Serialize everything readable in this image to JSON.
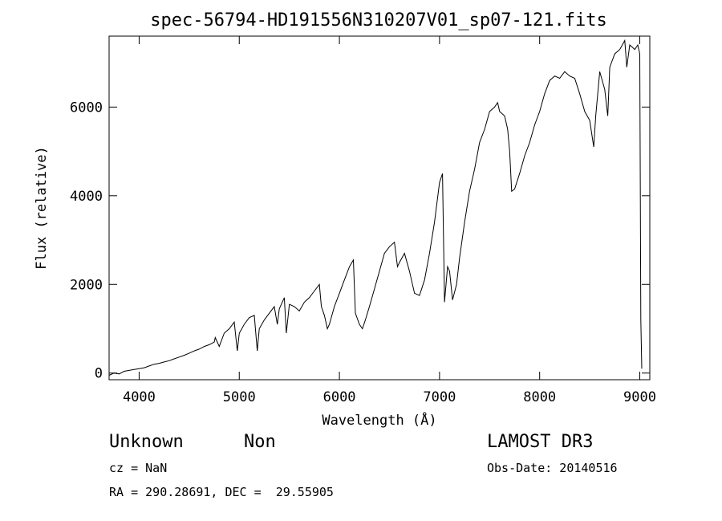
{
  "chart_data": {
    "type": "line",
    "title": "spec-56794-HD191556N310207V01_sp07-121.fits",
    "xlabel": "Wavelength (Å)",
    "ylabel": "Flux (relative)",
    "xlim": [
      3700,
      9100
    ],
    "ylim": [
      -150,
      7600
    ],
    "x_ticks": [
      4000,
      5000,
      6000,
      7000,
      8000,
      9000
    ],
    "y_ticks": [
      0,
      2000,
      4000,
      6000
    ],
    "grid": false,
    "series": [
      {
        "name": "flux",
        "x": [
          3700,
          3750,
          3800,
          3850,
          3900,
          3950,
          4000,
          4050,
          4100,
          4150,
          4200,
          4250,
          4300,
          4350,
          4400,
          4450,
          4500,
          4550,
          4600,
          4650,
          4700,
          4750,
          4760,
          4800,
          4850,
          4900,
          4950,
          4980,
          5000,
          5050,
          5100,
          5150,
          5180,
          5200,
          5250,
          5300,
          5350,
          5380,
          5400,
          5450,
          5470,
          5500,
          5550,
          5600,
          5650,
          5700,
          5750,
          5800,
          5820,
          5850,
          5880,
          5900,
          5950,
          6000,
          6050,
          6100,
          6140,
          6160,
          6200,
          6230,
          6260,
          6300,
          6350,
          6400,
          6450,
          6500,
          6550,
          6580,
          6600,
          6650,
          6700,
          6750,
          6800,
          6850,
          6900,
          6950,
          7000,
          7030,
          7050,
          7080,
          7100,
          7130,
          7170,
          7200,
          7250,
          7300,
          7350,
          7400,
          7450,
          7500,
          7550,
          7580,
          7600,
          7650,
          7680,
          7700,
          7720,
          7750,
          7800,
          7850,
          7900,
          7950,
          8000,
          8050,
          8100,
          8150,
          8200,
          8250,
          8300,
          8350,
          8400,
          8450,
          8500,
          8540,
          8560,
          8600,
          8650,
          8680,
          8700,
          8750,
          8800,
          8850,
          8870,
          8900,
          8950,
          8980,
          9000,
          9010,
          9020
        ],
        "y": [
          -50,
          0,
          -20,
          40,
          60,
          80,
          100,
          120,
          160,
          200,
          220,
          250,
          280,
          320,
          360,
          400,
          450,
          500,
          540,
          600,
          640,
          700,
          800,
          600,
          900,
          1000,
          1150,
          500,
          900,
          1100,
          1250,
          1300,
          500,
          1000,
          1200,
          1350,
          1500,
          1100,
          1450,
          1700,
          900,
          1550,
          1500,
          1400,
          1600,
          1700,
          1850,
          2000,
          1500,
          1300,
          1000,
          1100,
          1500,
          1800,
          2100,
          2400,
          2550,
          1350,
          1100,
          1000,
          1200,
          1500,
          1900,
          2300,
          2700,
          2850,
          2950,
          2400,
          2500,
          2700,
          2300,
          1800,
          1750,
          2100,
          2700,
          3400,
          4300,
          4500,
          1600,
          2400,
          2300,
          1650,
          2000,
          2600,
          3400,
          4100,
          4600,
          5200,
          5500,
          5900,
          6000,
          6100,
          5900,
          5800,
          5500,
          5000,
          4100,
          4150,
          4500,
          4900,
          5200,
          5600,
          5900,
          6300,
          6600,
          6700,
          6650,
          6800,
          6700,
          6650,
          6300,
          5900,
          5700,
          5100,
          5800,
          6800,
          6400,
          5800,
          6900,
          7200,
          7300,
          7500,
          6900,
          7400,
          7300,
          7400,
          7200,
          1200,
          100
        ]
      }
    ]
  },
  "annotations": {
    "object_class": "Unknown",
    "subclass": "Non",
    "survey": "LAMOST DR3",
    "redshift": "cz = NaN",
    "obs_date": "Obs-Date: 20140516",
    "coords": "RA = 290.28691, DEC =  29.55905"
  }
}
